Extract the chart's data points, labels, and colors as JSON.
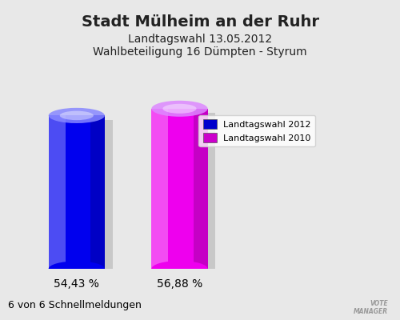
{
  "title": "Stadt Mülheim an der Ruhr",
  "subtitle1": "Landtagswahl 13.05.2012",
  "subtitle2": "Wahlbeteiligung 16 Dümpten - Styrum",
  "values": [
    54.43,
    56.88
  ],
  "bar_colors_main": [
    "#0000ee",
    "#ee00ee"
  ],
  "bar_colors_dark": [
    "#000088",
    "#880088"
  ],
  "bar_labels": [
    "54,43 %",
    "56,88 %"
  ],
  "legend_labels": [
    "Landtagswahl 2012",
    "Landtagswahl 2010"
  ],
  "legend_colors": [
    "#0000cc",
    "#cc00cc"
  ],
  "footnote": "6 von 6 Schnellmeldungen",
  "background_color": "#e8e8e8",
  "ylim_max": 75,
  "title_fontsize": 14,
  "subtitle_fontsize": 10,
  "label_fontsize": 10,
  "footnote_fontsize": 9
}
